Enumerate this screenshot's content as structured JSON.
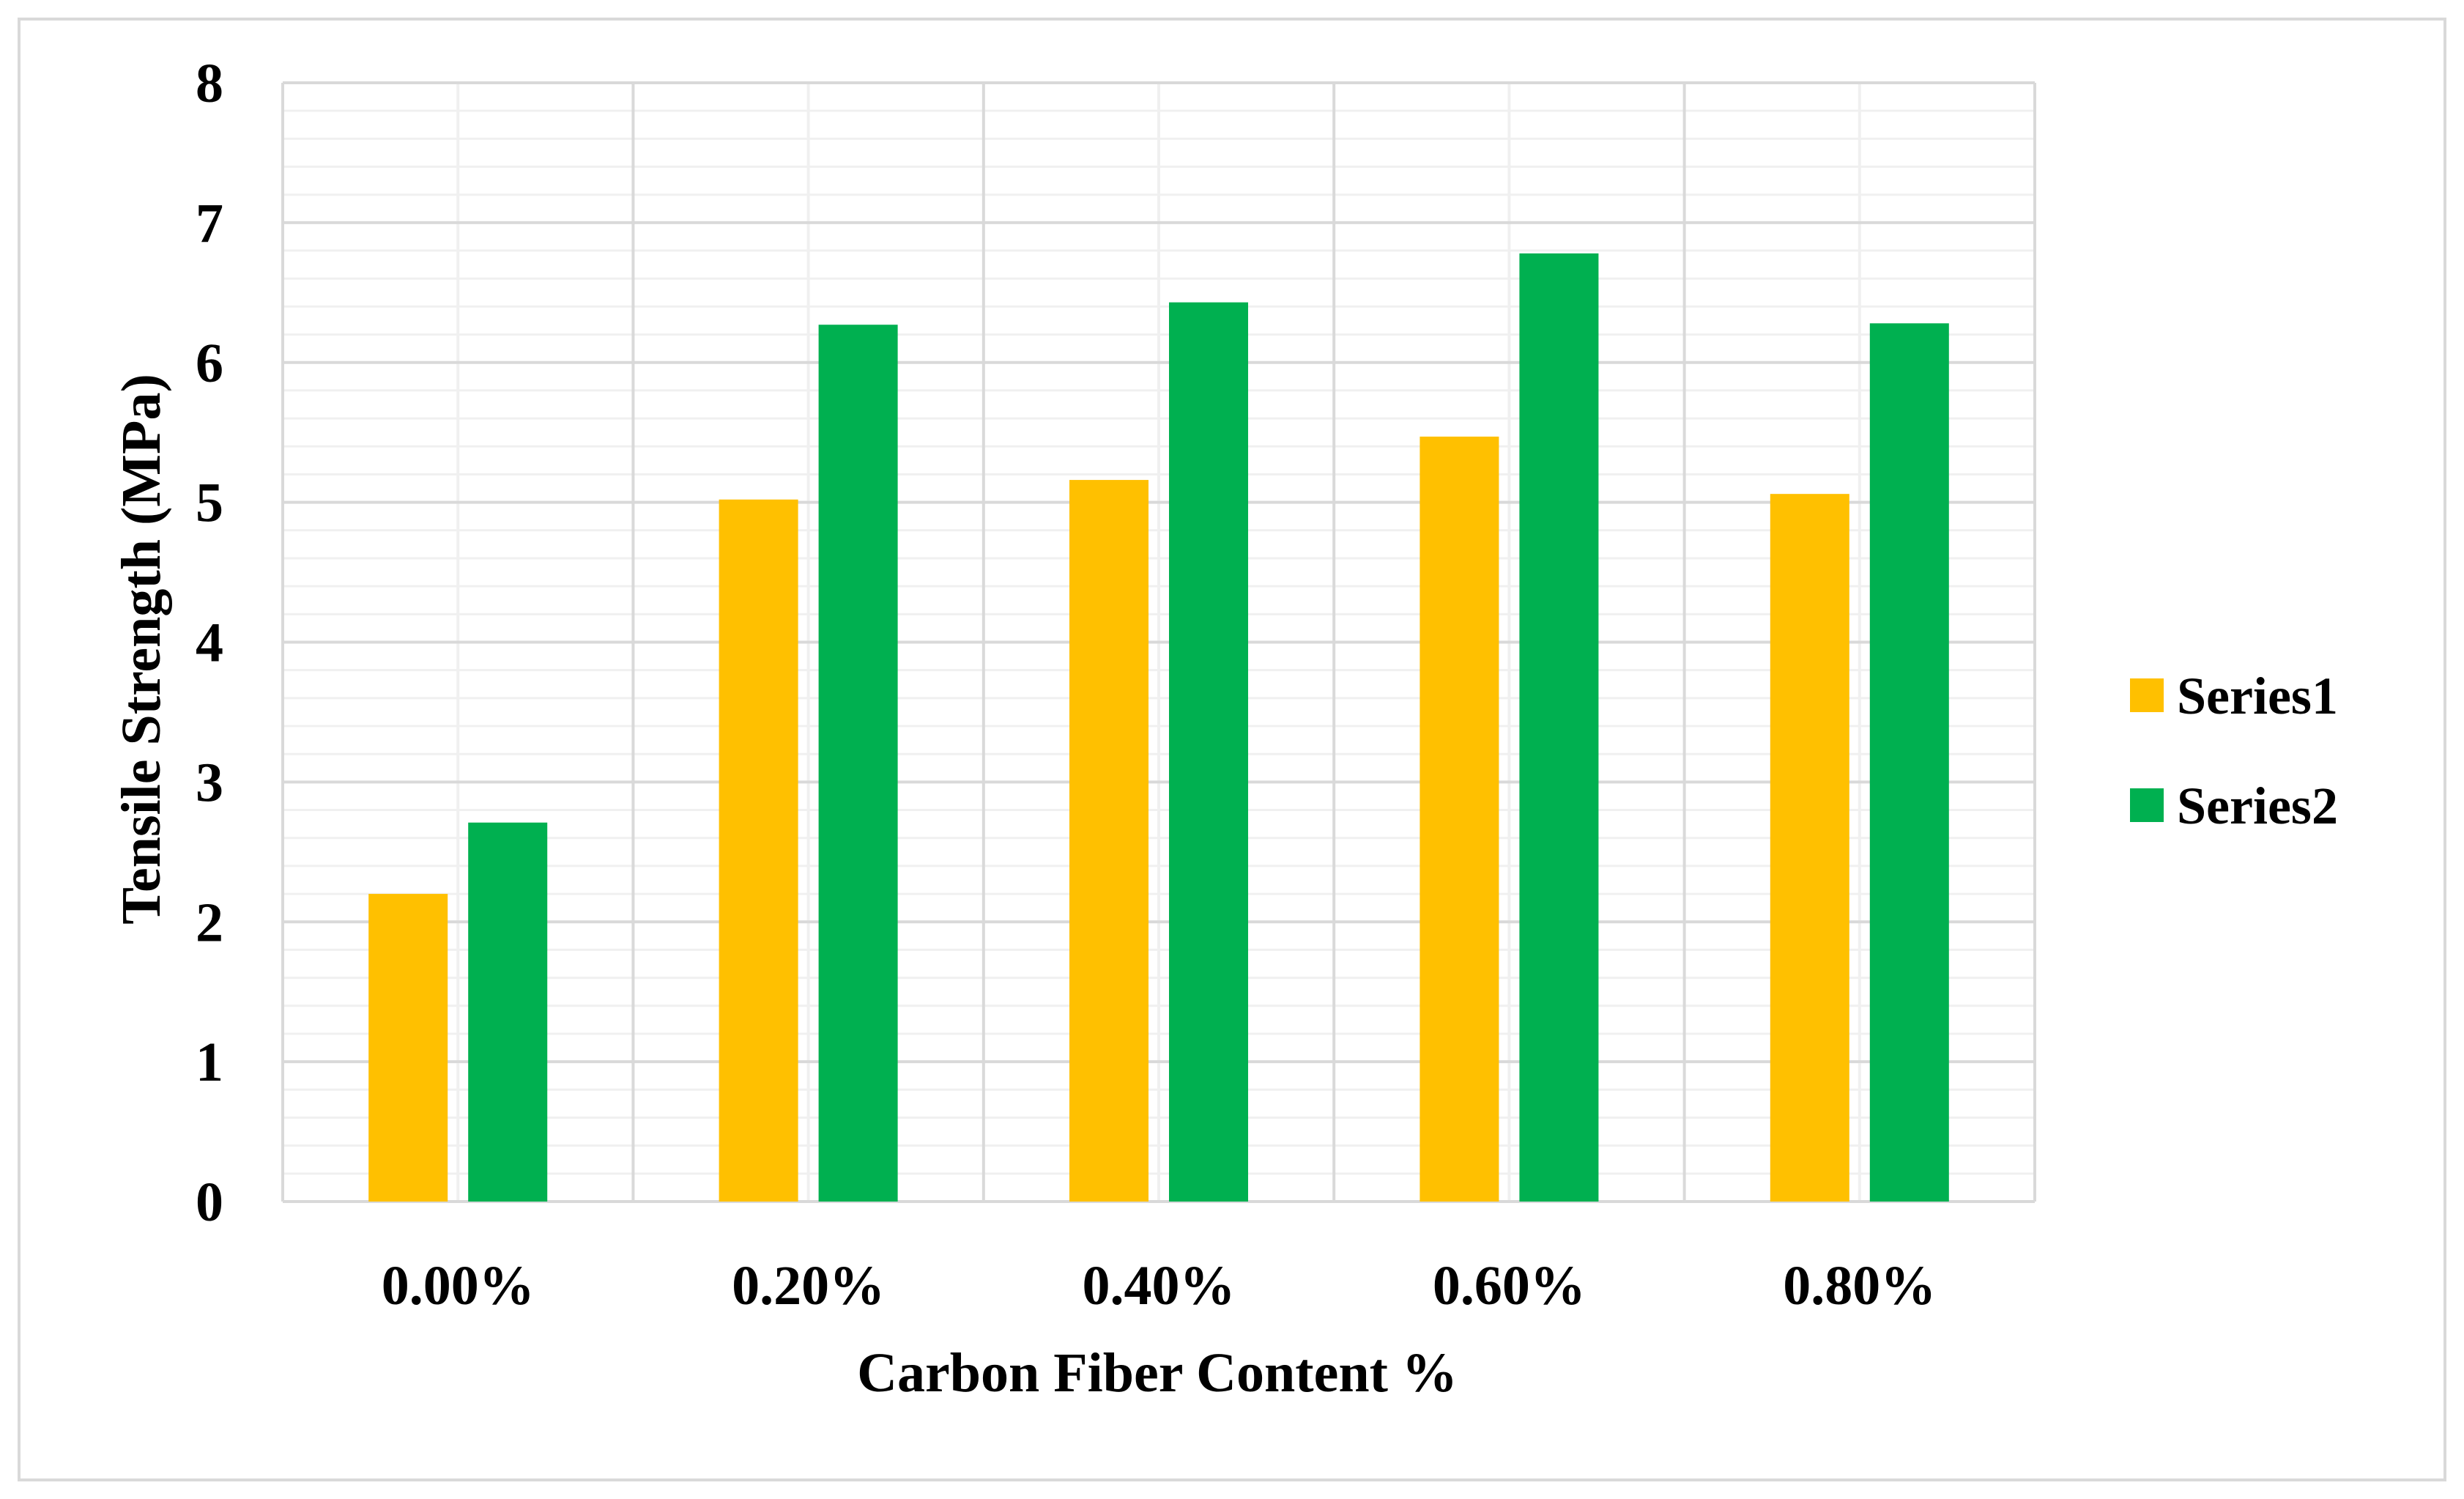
{
  "chart_data": {
    "type": "bar",
    "categories": [
      "0.00%",
      "0.20%",
      "0.40%",
      "0.60%",
      "0.80%"
    ],
    "series": [
      {
        "name": "Series1",
        "color": "#FFC000",
        "values": [
          2.2,
          5.02,
          5.16,
          5.47,
          5.06
        ]
      },
      {
        "name": "Series2",
        "color": "#00B050",
        "values": [
          2.71,
          6.27,
          6.43,
          6.78,
          6.28
        ]
      }
    ],
    "xlabel": "Carbon Fiber Content %",
    "ylabel": "Tensile Strength (MPa)",
    "ylim": [
      0,
      8
    ],
    "yticks": [
      "0",
      "1",
      "2",
      "3",
      "4",
      "5",
      "6",
      "7",
      "8"
    ],
    "grid": true,
    "legend_position": "right"
  }
}
